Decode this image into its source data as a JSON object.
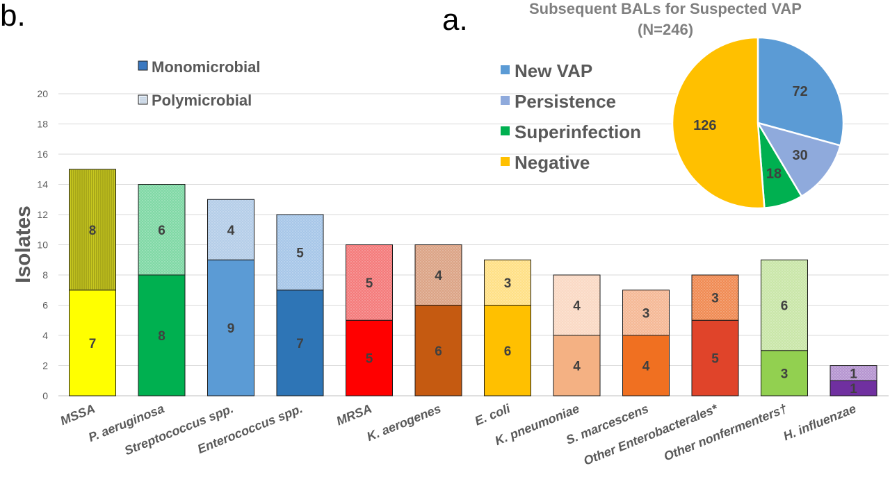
{
  "panel_labels": {
    "bar": "b.",
    "pie": "a."
  },
  "chart_data": [
    {
      "type": "bar",
      "stacked": true,
      "title": "",
      "xlabel": "",
      "ylabel": "Isolates",
      "ylim": [
        0,
        20
      ],
      "yticks": [
        0,
        2,
        4,
        6,
        8,
        10,
        12,
        14,
        16,
        18,
        20
      ],
      "grid": true,
      "legend_position": "top-left",
      "categories": [
        "MSSA",
        "P.  aeruginosa",
        "Streptococcus spp.",
        "Enterococcus spp.",
        "MRSA",
        "K. aerogenes",
        "E.  coli",
        "K. pneumoniae",
        "S. marcescens",
        "Other Enterobacterales*",
        "Other nonfermenters†",
        "H. influenzae"
      ],
      "series": [
        {
          "name": "Monomicrobial",
          "values": [
            7,
            8,
            9,
            7,
            5,
            6,
            6,
            4,
            4,
            5,
            3,
            1
          ],
          "legend_color": "#3a78c0"
        },
        {
          "name": "Polymicrobial",
          "values": [
            8,
            6,
            4,
            5,
            5,
            4,
            3,
            4,
            3,
            3,
            6,
            1
          ],
          "legend_color": "#e8f0f8"
        }
      ],
      "bar_colors": {
        "monomicrobial": [
          "#ffff00",
          "#00b050",
          "#5b9bd5",
          "#2e75b6",
          "#ff0000",
          "#c55a11",
          "#ffc000",
          "#f4b183",
          "#f07021",
          "#e0442a",
          "#92d050",
          "#7030a0"
        ],
        "polymicrobial": [
          "#c8c820",
          "#7fd8a5",
          "#b4cde8",
          "#a6c6e8",
          "#f47a7a",
          "#dba385",
          "#ffe085",
          "#fad9c4",
          "#f5b895",
          "#f08a52",
          "#c9e6a8",
          "#b594d0"
        ]
      }
    },
    {
      "type": "pie",
      "title": "Subsequent BALs for Suspected VAP",
      "subtitle": "(N=246)",
      "legend_position": "left",
      "labels": [
        "New VAP",
        "Persistence",
        "Superinfection",
        "Negative"
      ],
      "values": [
        72,
        30,
        18,
        126
      ],
      "colors": [
        "#5b9bd5",
        "#8faadc",
        "#00b050",
        "#ffc000"
      ]
    }
  ]
}
